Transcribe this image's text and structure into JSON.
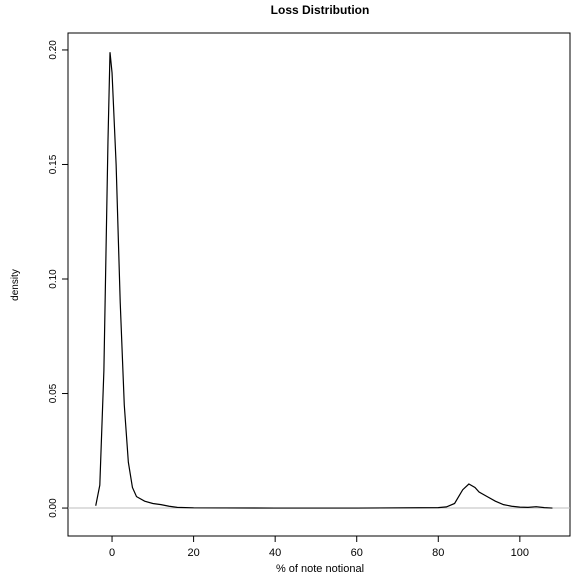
{
  "chart_data": {
    "type": "line",
    "title": "Loss Distribution",
    "xlabel": "% of note notional",
    "ylabel": "density",
    "x": [
      -4,
      -3,
      -2,
      -1,
      -0.5,
      0,
      1,
      2,
      3,
      4,
      5,
      6,
      8,
      10,
      12,
      14,
      16,
      20,
      40,
      60,
      80,
      82,
      84,
      85,
      86,
      87.5,
      89,
      90,
      92,
      94,
      96,
      98,
      100,
      102,
      104,
      106,
      108
    ],
    "series": [
      {
        "name": "density",
        "color": "#000000",
        "values": [
          0.001,
          0.01,
          0.06,
          0.16,
          0.199,
          0.19,
          0.15,
          0.09,
          0.045,
          0.02,
          0.009,
          0.005,
          0.003,
          0.002,
          0.0015,
          0.0008,
          0.0003,
          0.0001,
          0,
          0,
          0.0002,
          0.0005,
          0.002,
          0.005,
          0.008,
          0.0105,
          0.009,
          0.007,
          0.005,
          0.003,
          0.0015,
          0.0008,
          0.0004,
          0.0003,
          0.0006,
          0.0002,
          0
        ]
      }
    ],
    "xlim": [
      -10.8,
      112.3
    ],
    "xticks": [
      0,
      20,
      40,
      60,
      80,
      100
    ],
    "ylim": [
      -0.0122,
      0.2074
    ],
    "yticks": [
      {
        "value": 0,
        "label": "0.00"
      },
      0.05,
      {
        "value": 0.1,
        "label": "0.10"
      },
      0.15,
      {
        "value": 0.2,
        "label": "0.20"
      }
    ],
    "zero_line": true,
    "zero_line_color": "#bebebe"
  }
}
